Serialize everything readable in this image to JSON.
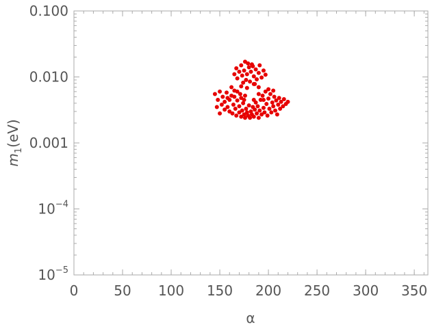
{
  "chart_data": {
    "type": "scatter",
    "xlabel": "α",
    "ylabel": {
      "symbol": "m",
      "subscript": "1",
      "unit": "(eV)"
    },
    "xlim": [
      0,
      364
    ],
    "xticks": [
      0,
      50,
      100,
      150,
      200,
      250,
      300,
      350
    ],
    "ylim": [
      1e-05,
      0.1
    ],
    "log_y": true,
    "yticks": [
      {
        "value": 0.1,
        "label": "0.100"
      },
      {
        "value": 0.01,
        "label": "0.010"
      },
      {
        "value": 0.001,
        "label": "0.001"
      },
      {
        "value": 0.0001,
        "label": "10",
        "sup": "−4"
      },
      {
        "value": 1e-05,
        "label": "10",
        "sup": "−5"
      }
    ],
    "series": [
      {
        "color": "#e60000",
        "x": [
          145,
          148,
          150,
          152,
          153,
          155,
          155,
          157,
          158,
          160,
          160,
          162,
          163,
          164,
          165,
          166,
          167,
          168,
          170,
          170,
          171,
          172,
          173,
          174,
          175,
          176,
          177,
          178,
          179,
          180,
          181,
          182,
          183,
          184,
          185,
          186,
          187,
          188,
          189,
          190,
          191,
          192,
          193,
          194,
          195,
          196,
          197,
          198,
          199,
          200,
          201,
          202,
          203,
          204,
          205,
          206,
          207,
          208,
          209,
          210,
          211,
          212,
          213,
          215,
          216,
          218,
          220,
          147,
          150,
          158,
          165,
          168,
          172,
          176,
          175,
          185,
          190,
          195,
          200,
          205,
          178,
          172,
          162,
          190,
          185,
          165,
          167,
          168,
          170,
          172,
          173,
          175,
          176,
          177,
          178,
          180,
          181,
          182,
          184,
          185,
          187,
          188,
          190,
          191,
          193,
          195,
          197,
          174,
          186,
          183,
          179
        ],
        "y": [
          0.0055,
          0.0045,
          0.006,
          0.0038,
          0.005,
          0.0032,
          0.0042,
          0.0058,
          0.0035,
          0.003,
          0.0045,
          0.0052,
          0.0028,
          0.0038,
          0.0062,
          0.0033,
          0.0026,
          0.0044,
          0.0029,
          0.0036,
          0.0055,
          0.0025,
          0.0031,
          0.004,
          0.0027,
          0.0024,
          0.0033,
          0.0029,
          0.0026,
          0.0037,
          0.0024,
          0.003,
          0.0027,
          0.0035,
          0.0025,
          0.0032,
          0.0041,
          0.0028,
          0.0036,
          0.0024,
          0.0031,
          0.0045,
          0.0027,
          0.0052,
          0.0034,
          0.0029,
          0.006,
          0.0039,
          0.0026,
          0.0047,
          0.0033,
          0.0055,
          0.0029,
          0.0041,
          0.0036,
          0.005,
          0.0031,
          0.0044,
          0.0027,
          0.0038,
          0.0048,
          0.0033,
          0.0042,
          0.0036,
          0.0046,
          0.0039,
          0.0042,
          0.0035,
          0.0028,
          0.0048,
          0.005,
          0.006,
          0.0048,
          0.0052,
          0.0045,
          0.0045,
          0.0055,
          0.0045,
          0.0065,
          0.0062,
          0.0068,
          0.0072,
          0.007,
          0.007,
          0.0078,
          0.011,
          0.0135,
          0.0095,
          0.012,
          0.015,
          0.0105,
          0.0125,
          0.017,
          0.009,
          0.011,
          0.014,
          0.0085,
          0.012,
          0.0145,
          0.0102,
          0.013,
          0.0092,
          0.0115,
          0.015,
          0.0098,
          0.0125,
          0.0108,
          0.0082,
          0.0078,
          0.0155,
          0.016
        ]
      }
    ]
  }
}
